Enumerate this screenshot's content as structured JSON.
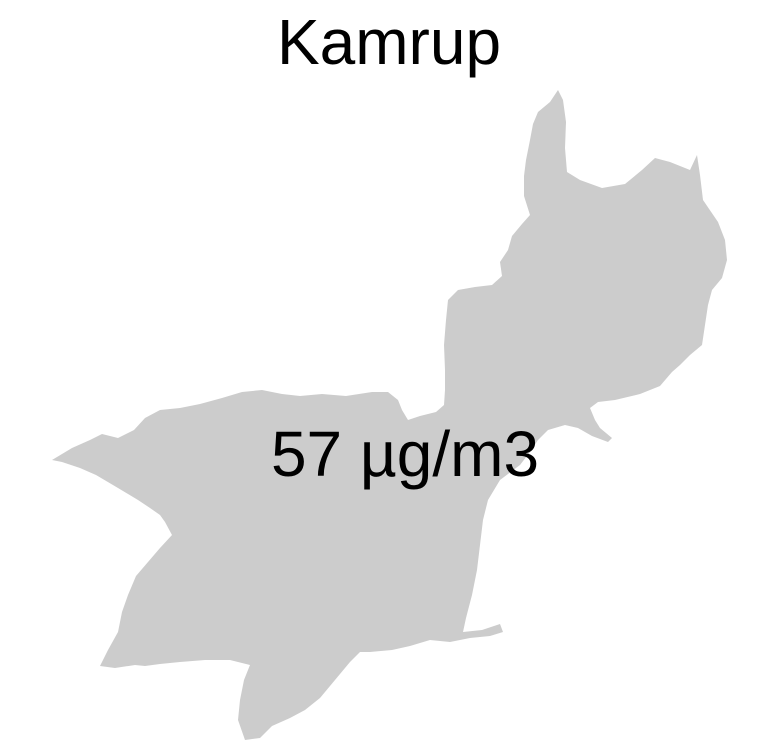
{
  "map": {
    "title": "Kamrup",
    "region_fill": "#cccccc",
    "value_label": "57 µg/m3"
  }
}
